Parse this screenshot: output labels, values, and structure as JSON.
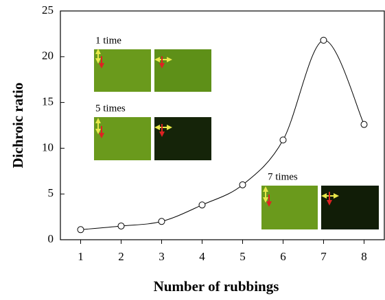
{
  "chart_data": {
    "type": "line",
    "x_label": "Number of rubbings",
    "y_label": "Dichroic ratio",
    "x": [
      1,
      2,
      3,
      4,
      5,
      6,
      7,
      8
    ],
    "series": [
      {
        "name": "Dichroic ratio",
        "color": "#000000",
        "values": [
          1.1,
          1.5,
          2.0,
          3.8,
          6.0,
          10.9,
          21.8,
          12.6
        ]
      }
    ],
    "xlim": [
      0.5,
      8.5
    ],
    "xticks": [
      1,
      2,
      3,
      4,
      5,
      6,
      7,
      8
    ],
    "ylim": [
      0,
      25
    ],
    "yticks": [
      0,
      5,
      10,
      15,
      20,
      25
    ],
    "annotations": [
      "1 time",
      "5 times",
      "7 times"
    ]
  }
}
